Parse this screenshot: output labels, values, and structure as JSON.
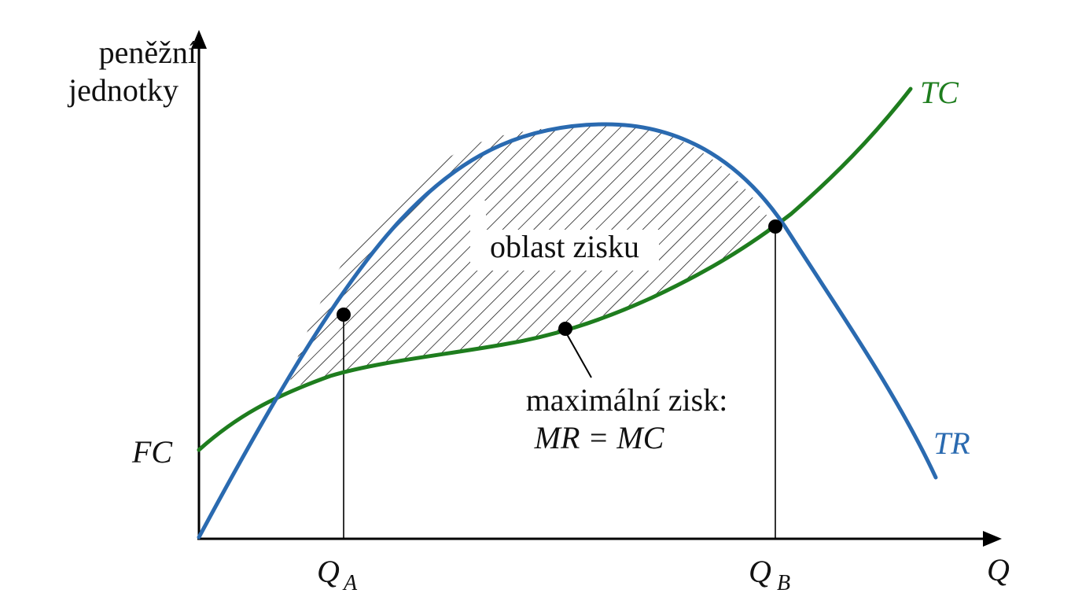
{
  "diagram": {
    "y_axis_label_line1": "peněžní",
    "y_axis_label_line2": "jednotky",
    "x_axis_label": "Q",
    "fc_label": "FC",
    "tc_label": "TC",
    "tr_label": "TR",
    "qa_main": "Q",
    "qa_sub": "A",
    "qb_main": "Q",
    "qb_sub": "B",
    "profit_area_label": "oblast zisku",
    "max_profit_line1": "maximální zisk:",
    "max_profit_line2": "MR = MC"
  },
  "colors": {
    "tc": "#1e7d1e",
    "tr": "#2a6ab0",
    "axis": "#000000"
  }
}
